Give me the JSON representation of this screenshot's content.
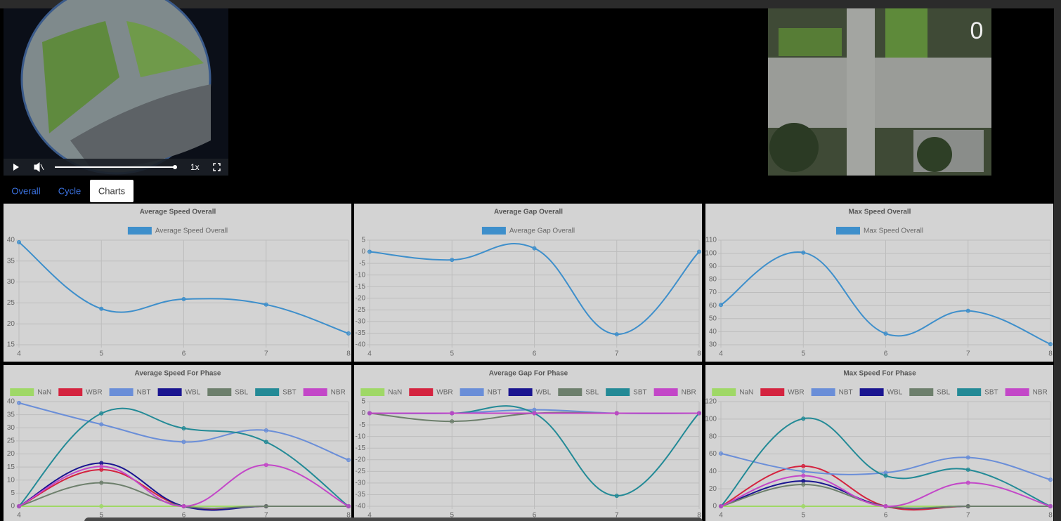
{
  "tabs": [
    "Overall",
    "Cycle",
    "Charts"
  ],
  "video_speed": "1x",
  "map_overlay": "0",
  "chart_data": [
    {
      "type": "line",
      "title": "Average Speed Overall",
      "x": [
        4,
        5,
        6,
        7,
        8
      ],
      "xlim": [
        4,
        8
      ],
      "xticks": [
        4,
        5,
        6,
        7,
        8
      ],
      "ylim": [
        15,
        40
      ],
      "yticks": [
        15,
        20,
        25,
        30,
        35,
        40
      ],
      "grid": true,
      "series": [
        {
          "name": "Average Speed Overall",
          "color": "#3e8fcb",
          "values": [
            39.5,
            23.6,
            25.9,
            24.6,
            17.7
          ]
        }
      ]
    },
    {
      "type": "line",
      "title": "Average Gap Overall",
      "x": [
        4,
        5,
        6,
        7,
        8
      ],
      "xlim": [
        4,
        8
      ],
      "xticks": [
        4,
        5,
        6,
        7,
        8
      ],
      "ylim": [
        -40,
        5
      ],
      "yticks": [
        -40,
        -35,
        -30,
        -25,
        -20,
        -15,
        -10,
        -5,
        0,
        5
      ],
      "grid": true,
      "series": [
        {
          "name": "Average Gap Overall",
          "color": "#3e8fcb",
          "values": [
            0,
            -3.5,
            1.5,
            -35.5,
            0
          ]
        }
      ]
    },
    {
      "type": "line",
      "title": "Max Speed Overall",
      "x": [
        4,
        5,
        6,
        7,
        8
      ],
      "xlim": [
        4,
        8
      ],
      "xticks": [
        4,
        5,
        6,
        7,
        8
      ],
      "ylim": [
        30,
        110
      ],
      "yticks": [
        30,
        40,
        50,
        60,
        70,
        80,
        90,
        100,
        110
      ],
      "grid": true,
      "series": [
        {
          "name": "Max Speed Overall",
          "color": "#3e8fcb",
          "values": [
            60.5,
            100.5,
            38.5,
            56,
            30.5
          ]
        }
      ]
    },
    {
      "type": "line",
      "title": "Average Speed For Phase",
      "x": [
        4,
        5,
        6,
        7,
        8
      ],
      "xlim": [
        4,
        8
      ],
      "xticks": [
        4,
        5,
        6,
        7,
        8
      ],
      "ylim": [
        0,
        40
      ],
      "yticks": [
        0,
        5,
        10,
        15,
        20,
        25,
        30,
        35,
        40
      ],
      "grid": true,
      "series": [
        {
          "name": "NaN",
          "color": "#9fd866",
          "values": [
            0,
            0,
            0,
            0,
            0
          ]
        },
        {
          "name": "WBR",
          "color": "#d4233f",
          "values": [
            0,
            14,
            0,
            0,
            0
          ]
        },
        {
          "name": "NBT",
          "color": "#6a8ed8",
          "values": [
            39.5,
            31.3,
            24.6,
            29,
            17.7
          ]
        },
        {
          "name": "WBL",
          "color": "#1a1590",
          "values": [
            0,
            16.5,
            0,
            0,
            0
          ]
        },
        {
          "name": "SBL",
          "color": "#6d7f6c",
          "values": [
            0,
            9,
            0,
            0,
            0
          ]
        },
        {
          "name": "SBT",
          "color": "#238a96",
          "values": [
            0,
            35.5,
            29.8,
            24.6,
            0
          ]
        },
        {
          "name": "NBR",
          "color": "#c347c8",
          "values": [
            0,
            15.2,
            0,
            15.8,
            0
          ]
        }
      ]
    },
    {
      "type": "line",
      "title": "Average Gap For Phase",
      "x": [
        4,
        5,
        6,
        7,
        8
      ],
      "xlim": [
        4,
        8
      ],
      "xticks": [
        4,
        5,
        6,
        7,
        8
      ],
      "ylim": [
        -40,
        5
      ],
      "yticks": [
        -40,
        -35,
        -30,
        -25,
        -20,
        -15,
        -10,
        -5,
        0,
        5
      ],
      "grid": true,
      "series": [
        {
          "name": "NaN",
          "color": "#9fd866",
          "values": [
            0,
            0,
            0,
            0,
            0
          ]
        },
        {
          "name": "WBR",
          "color": "#d4233f",
          "values": [
            0,
            0,
            0,
            0,
            0
          ]
        },
        {
          "name": "NBT",
          "color": "#6a8ed8",
          "values": [
            0,
            0,
            1.5,
            0,
            0
          ]
        },
        {
          "name": "WBL",
          "color": "#1a1590",
          "values": [
            0,
            0,
            0,
            0,
            0
          ]
        },
        {
          "name": "SBL",
          "color": "#6d7f6c",
          "values": [
            0,
            -3.5,
            0,
            0,
            0
          ]
        },
        {
          "name": "SBT",
          "color": "#238a96",
          "values": [
            0,
            0,
            0,
            -35.5,
            0
          ]
        },
        {
          "name": "NBR",
          "color": "#c347c8",
          "values": [
            0,
            0,
            0,
            0,
            0
          ]
        }
      ]
    },
    {
      "type": "line",
      "title": "Max Speed For Phase",
      "x": [
        4,
        5,
        6,
        7,
        8
      ],
      "xlim": [
        4,
        8
      ],
      "xticks": [
        4,
        5,
        6,
        7,
        8
      ],
      "ylim": [
        0,
        120
      ],
      "yticks": [
        0,
        20,
        40,
        60,
        80,
        100,
        120
      ],
      "grid": true,
      "series": [
        {
          "name": "NaN",
          "color": "#9fd866",
          "values": [
            0,
            0,
            0,
            0,
            0
          ]
        },
        {
          "name": "WBR",
          "color": "#d4233f",
          "values": [
            0,
            46,
            0,
            0,
            0
          ]
        },
        {
          "name": "NBT",
          "color": "#6a8ed8",
          "values": [
            60.5,
            40,
            38.5,
            56,
            30.5
          ]
        },
        {
          "name": "WBL",
          "color": "#1a1590",
          "values": [
            0,
            29,
            0,
            0,
            0
          ]
        },
        {
          "name": "SBL",
          "color": "#6d7f6c",
          "values": [
            0,
            25,
            0,
            0,
            0
          ]
        },
        {
          "name": "SBT",
          "color": "#238a96",
          "values": [
            0,
            100.5,
            35,
            42,
            0
          ]
        },
        {
          "name": "NBR",
          "color": "#c347c8",
          "values": [
            0,
            35,
            0,
            27,
            0
          ]
        }
      ]
    }
  ]
}
